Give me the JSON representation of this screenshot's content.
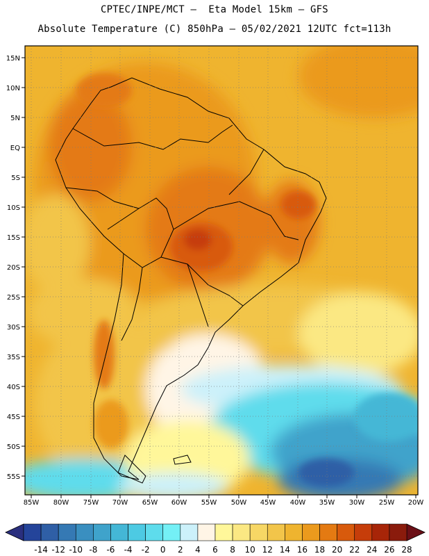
{
  "header": {
    "line1": "CPTEC/INPE/MCT –  Eta Model 15km – GFS",
    "line2": "Absolute Temperature (C) 850hPa – 05/02/2021 12UTC fct=113h"
  },
  "map": {
    "lon_labels": [
      "85W",
      "80W",
      "75W",
      "70W",
      "65W",
      "60W",
      "55W",
      "50W",
      "45W",
      "40W",
      "35W",
      "30W",
      "25W",
      "20W"
    ],
    "lat_labels": [
      "15N",
      "10N",
      "5N",
      "EQ",
      "5S",
      "10S",
      "15S",
      "20S",
      "25S",
      "30S",
      "35S",
      "40S",
      "45S",
      "50S",
      "55S"
    ]
  },
  "legend": {
    "labels": [
      "-14",
      "-12",
      "-10",
      "-8",
      "-6",
      "-4",
      "-2",
      "0",
      "2",
      "4",
      "6",
      "8",
      "10",
      "12",
      "14",
      "16",
      "18",
      "20",
      "22",
      "24",
      "26",
      "28"
    ],
    "colors": {
      "under": "#2a2f7e",
      "bins": [
        "#24449a",
        "#2f5fa6",
        "#3579b4",
        "#3a8fc0",
        "#3fa3cb",
        "#44b7d6",
        "#4dcae3",
        "#5edcec",
        "#74f0f6",
        "#ccf1fa",
        "#fff5e6",
        "#fff79a",
        "#fbe883",
        "#f7d765",
        "#f2c54a",
        "#efb42f",
        "#eb9a1d",
        "#e47a12",
        "#d85a0c",
        "#c63d0a",
        "#a72508",
        "#8a1b0c"
      ],
      "over": "#6b0f16",
      "land_outline": "#000000"
    }
  }
}
